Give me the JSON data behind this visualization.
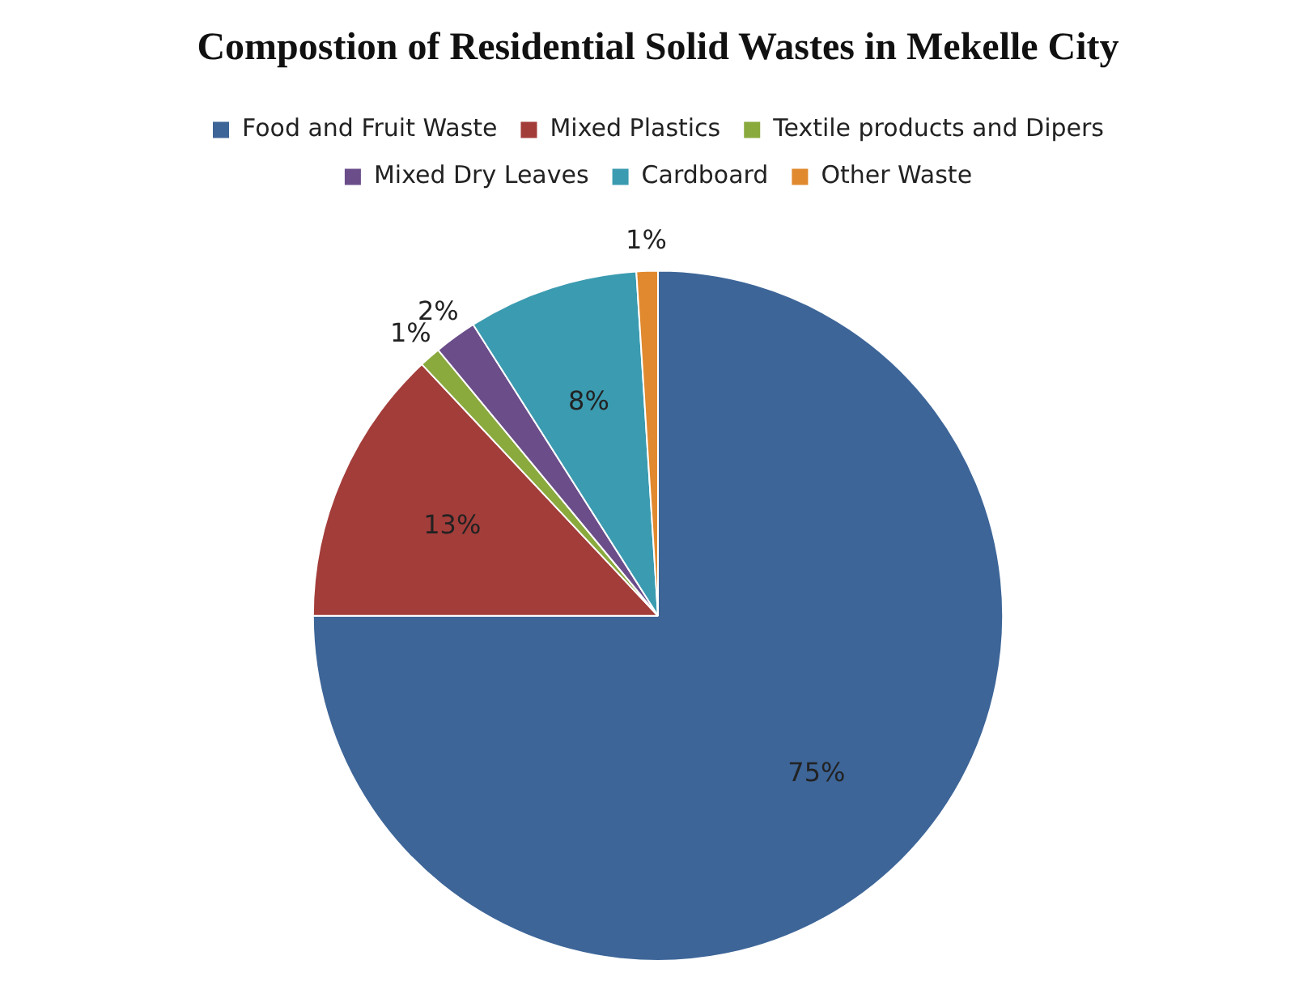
{
  "chart_data": {
    "type": "pie",
    "title": "Compostion of Residential Solid Wastes in Mekelle City",
    "categories": [
      "Food and Fruit Waste",
      "Mixed Plastics",
      "Textile products and Dipers",
      "Mixed Dry Leaves",
      "Cardboard",
      "Other Waste"
    ],
    "values": [
      75,
      13,
      1,
      2,
      8,
      1
    ],
    "colors": [
      "#3d6598",
      "#a33d3a",
      "#8aaa3e",
      "#6b4d8a",
      "#3b9bb0",
      "#e0892f"
    ],
    "value_labels": [
      "75%",
      "13%",
      "1%",
      "2%",
      "8%",
      "1%"
    ],
    "legend": "top"
  }
}
